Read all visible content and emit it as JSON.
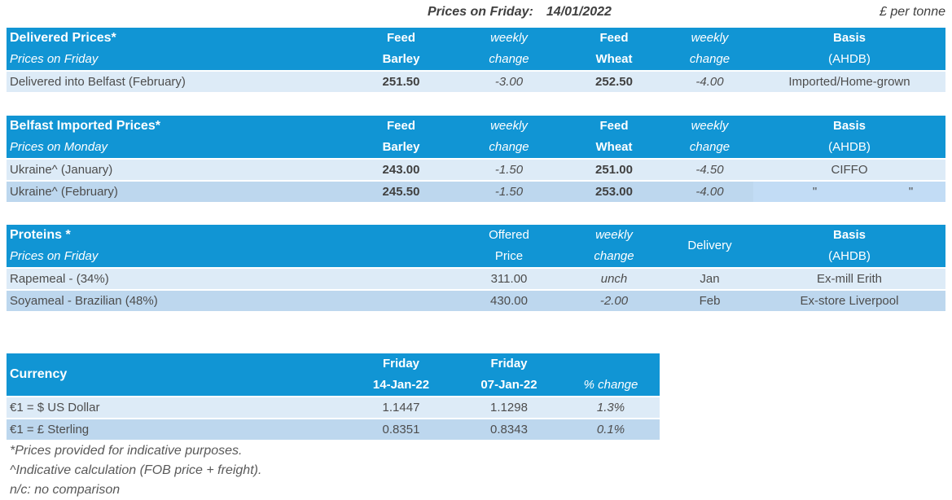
{
  "header": {
    "prices_label": "Prices on Friday:",
    "prices_date": "14/01/2022",
    "unit": "£ per tonne"
  },
  "colors": {
    "header_blue": "#1195d4",
    "row_light": "#ddebf7",
    "row_dark": "#bdd7ee",
    "row_dark_basis": "#c2dcf5",
    "text": "#4d4d4d",
    "text_dark": "#404040",
    "footnote": "#595959"
  },
  "delivered": {
    "title": "Delivered Prices*",
    "subtitle": "Prices on Friday",
    "headers": {
      "barley1": "Feed",
      "barley2": "Barley",
      "chg1a": "weekly",
      "chg1b": "change",
      "wheat1": "Feed",
      "wheat2": "Wheat",
      "chg2a": "weekly",
      "chg2b": "change",
      "basis1": "Basis",
      "basis2": "(AHDB)"
    },
    "rows": [
      {
        "label": "Delivered into Belfast (February)",
        "barley": "251.50",
        "chg1": "-3.00",
        "wheat": "252.50",
        "chg2": "-4.00",
        "basis": "Imported/Home-grown"
      }
    ]
  },
  "belfast": {
    "title": "Belfast Imported Prices*",
    "subtitle": "Prices on Monday",
    "headers": {
      "barley1": "Feed",
      "barley2": "Barley",
      "chg1a": "weekly",
      "chg1b": "change",
      "wheat1": "Feed",
      "wheat2": "Wheat",
      "chg2a": "weekly",
      "chg2b": "change",
      "basis1": "Basis",
      "basis2": "(AHDB)"
    },
    "rows": [
      {
        "label": "Ukraine^ (January)",
        "barley": "243.00",
        "chg1": "-1.50",
        "wheat": "251.00",
        "chg2": "-4.50",
        "basis": "CIFFO"
      },
      {
        "label": "Ukraine^ (February)",
        "barley": "245.50",
        "chg1": "-1.50",
        "wheat": "253.00",
        "chg2": "-4.00",
        "basis_ditto_1": "\"",
        "basis_ditto_2": "\""
      }
    ]
  },
  "proteins": {
    "title": "Proteins *",
    "subtitle": "Prices on Friday",
    "headers": {
      "price1": "Offered",
      "price2": "Price",
      "chga": "weekly",
      "chgb": "change",
      "delivery": "Delivery",
      "basis1": "Basis",
      "basis2": "(AHDB)"
    },
    "rows": [
      {
        "label": "Rapemeal - (34%)",
        "price": "311.00",
        "chg": "unch",
        "delivery": "Jan",
        "basis": "Ex-mill Erith"
      },
      {
        "label": "Soyameal - Brazilian (48%)",
        "price": "430.00",
        "chg": "-2.00",
        "delivery": "Feb",
        "basis": "Ex-store Liverpool"
      }
    ]
  },
  "currency": {
    "title": "Currency",
    "headers": {
      "cur1a": "Friday",
      "cur1b": "14-Jan-22",
      "cur2a": "Friday",
      "cur2b": "07-Jan-22",
      "pct": "% change"
    },
    "rows": [
      {
        "label": "€1 = $ US Dollar",
        "cur": "1.1447",
        "prev": "1.1298",
        "pct": "1.3%"
      },
      {
        "label": "€1 = £ Sterling",
        "cur": "0.8351",
        "prev": "0.8343",
        "pct": "0.1%"
      }
    ]
  },
  "footnotes": [
    "*Prices provided for indicative purposes.",
    "^Indicative calculation (FOB price + freight).",
    "n/c: no comparison"
  ]
}
